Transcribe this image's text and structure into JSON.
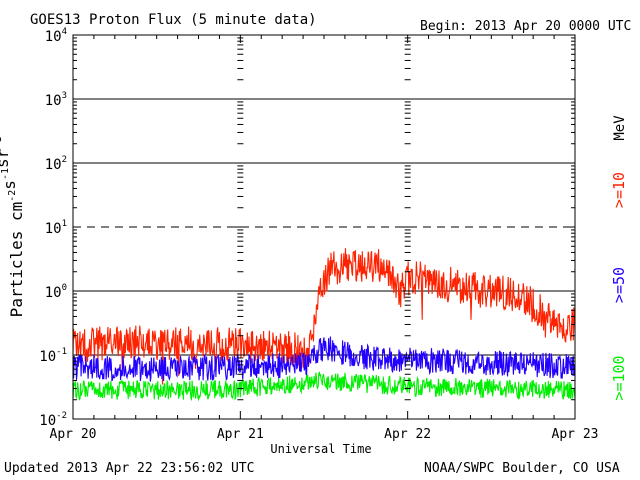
{
  "header": {
    "title": "GOES13 Proton Flux (5 minute data)",
    "begin": "Begin: 2013 Apr 20 0000 UTC"
  },
  "footer": {
    "updated": "Updated 2013 Apr 22 23:56:02 UTC",
    "credit": "NOAA/SWPC Boulder, CO USA"
  },
  "chart_data": {
    "type": "line",
    "title": "GOES13 Proton Flux (5 minute data)",
    "xlabel": "Universal Time",
    "ylabel": "Particles cm-2s-1sr-1",
    "yscale": "log",
    "ylim": [
      0.01,
      10000
    ],
    "xlim": [
      "2013-04-20 00:00",
      "2013-04-23 00:00"
    ],
    "x_ticks": [
      "Apr 20",
      "Apr 21",
      "Apr 22",
      "Apr 23"
    ],
    "y_ticks": [
      {
        "base": "10",
        "exp": "-2"
      },
      {
        "base": "10",
        "exp": "-1"
      },
      {
        "base": "10",
        "exp": "0"
      },
      {
        "base": "10",
        "exp": "1"
      },
      {
        "base": "10",
        "exp": "2"
      },
      {
        "base": "10",
        "exp": "3"
      },
      {
        "base": "10",
        "exp": "4"
      }
    ],
    "threshold_lines": [
      {
        "value": 0.1,
        "style": "solid"
      },
      {
        "value": 1,
        "style": "solid"
      },
      {
        "value": 10,
        "style": "dashed"
      },
      {
        "value": 100,
        "style": "solid"
      },
      {
        "value": 1000,
        "style": "solid"
      }
    ],
    "unit_label": "MeV",
    "series": [
      {
        "name": ">=10",
        "color": "#ff2200",
        "points": [
          [
            "2013-04-20 00:00",
            0.14
          ],
          [
            "2013-04-20 06:00",
            0.16
          ],
          [
            "2013-04-20 12:00",
            0.15
          ],
          [
            "2013-04-20 18:00",
            0.15
          ],
          [
            "2013-04-21 00:00",
            0.14
          ],
          [
            "2013-04-21 06:00",
            0.13
          ],
          [
            "2013-04-21 10:00",
            0.12
          ],
          [
            "2013-04-21 11:00",
            0.6
          ],
          [
            "2013-04-21 12:00",
            1.6
          ],
          [
            "2013-04-21 13:00",
            2.2
          ],
          [
            "2013-04-21 15:00",
            2.5
          ],
          [
            "2013-04-21 18:00",
            2.6
          ],
          [
            "2013-04-21 21:00",
            2.4
          ],
          [
            "2013-04-21 23:00",
            1.0
          ],
          [
            "2013-04-22 00:00",
            1.6
          ],
          [
            "2013-04-22 03:00",
            1.5
          ],
          [
            "2013-04-22 06:00",
            1.3
          ],
          [
            "2013-04-22 09:00",
            1.1
          ],
          [
            "2013-04-22 12:00",
            0.95
          ],
          [
            "2013-04-22 15:00",
            0.9
          ],
          [
            "2013-04-22 18:00",
            0.6
          ],
          [
            "2013-04-22 21:00",
            0.3
          ],
          [
            "2013-04-23 00:00",
            0.3
          ]
        ]
      },
      {
        "name": ">=50",
        "color": "#2200ff",
        "points": [
          [
            "2013-04-20 00:00",
            0.065
          ],
          [
            "2013-04-20 12:00",
            0.06
          ],
          [
            "2013-04-21 00:00",
            0.065
          ],
          [
            "2013-04-21 09:00",
            0.07
          ],
          [
            "2013-04-21 12:00",
            0.13
          ],
          [
            "2013-04-21 18:00",
            0.09
          ],
          [
            "2013-04-22 00:00",
            0.085
          ],
          [
            "2013-04-22 12:00",
            0.075
          ],
          [
            "2013-04-23 00:00",
            0.065
          ]
        ]
      },
      {
        "name": ">=100",
        "color": "#00ee00",
        "points": [
          [
            "2013-04-20 00:00",
            0.028
          ],
          [
            "2013-04-20 12:00",
            0.028
          ],
          [
            "2013-04-21 00:00",
            0.029
          ],
          [
            "2013-04-21 12:00",
            0.04
          ],
          [
            "2013-04-22 00:00",
            0.032
          ],
          [
            "2013-04-22 12:00",
            0.03
          ],
          [
            "2013-04-23 00:00",
            0.028
          ]
        ]
      }
    ]
  }
}
